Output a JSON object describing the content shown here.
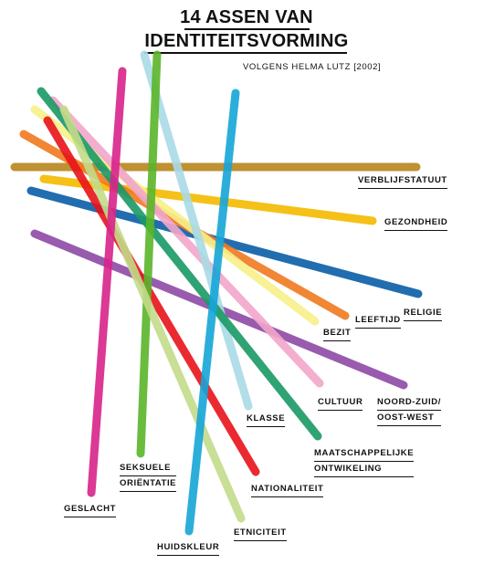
{
  "title": {
    "line1": "14 ASSEN VAN",
    "line2": "IDENTITEITSVORMING",
    "subtitle": "VOLGENS HELMA LUTZ [2002]"
  },
  "axes": [
    {
      "id": "verblijfstatuut",
      "label": [
        "VERBLIJFSTATUUT"
      ],
      "color": "#b8861e"
    },
    {
      "id": "gezondheid",
      "label": [
        "GEZONDHEID"
      ],
      "color": "#f5bb00"
    },
    {
      "id": "religie",
      "label": [
        "RELIGIE"
      ],
      "color": "#0a5ea8"
    },
    {
      "id": "leeftijd",
      "label": [
        "LEEFTIJD"
      ],
      "color": "#f07a20"
    },
    {
      "id": "bezit",
      "label": [
        "BEZIT"
      ],
      "color": "#f8f08a"
    },
    {
      "id": "noord-zuid",
      "label": [
        "NOORD-ZUID/",
        "OOST-WEST"
      ],
      "color": "#8e4aa6"
    },
    {
      "id": "cultuur",
      "label": [
        "CULTUUR"
      ],
      "color": "#f2a6cc"
    },
    {
      "id": "klasse",
      "label": [
        "KLASSE"
      ],
      "color": "#a9dbe6"
    },
    {
      "id": "maatschappelijke-ontwikkeling",
      "label": [
        "MAATSCHAPPELIJKE",
        "ONTWIKELING"
      ],
      "color": "#1a9a66"
    },
    {
      "id": "nationaliteit",
      "label": [
        "NATIONALITEIT"
      ],
      "color": "#e8141a"
    },
    {
      "id": "seksuele-orientatie",
      "label": [
        "SEKSUELE",
        "ORIËNTATIE"
      ],
      "color": "#5ab52a"
    },
    {
      "id": "etniciteit",
      "label": [
        "ETNICITEIT"
      ],
      "color": "#c3dc8a"
    },
    {
      "id": "geslacht",
      "label": [
        "GESLACHT"
      ],
      "color": "#d8248a"
    },
    {
      "id": "huidskleur",
      "label": [
        "HUIDSKLEUR"
      ],
      "color": "#16a6d8"
    }
  ]
}
